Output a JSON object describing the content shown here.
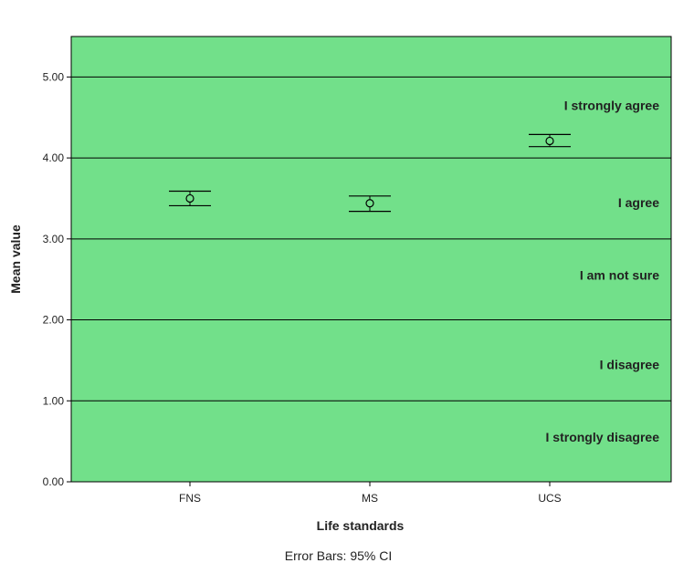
{
  "chart_data": {
    "type": "errorbar",
    "categories": [
      "FNS",
      "MS",
      "UCS"
    ],
    "means": [
      3.5,
      3.44,
      4.21
    ],
    "ci_lower": [
      3.41,
      3.34,
      4.14
    ],
    "ci_upper": [
      3.59,
      3.53,
      4.29
    ],
    "xlabel": "Life standards",
    "ylabel": "Mean value",
    "ylim": [
      0,
      5.5
    ],
    "yticks": [
      "0.00",
      "1.00",
      "2.00",
      "3.00",
      "4.00",
      "5.00"
    ],
    "gridlines": [
      1,
      2,
      3,
      4,
      5
    ],
    "zones": [
      {
        "label": "I strongly disagree",
        "y": 0.55
      },
      {
        "label": "I disagree",
        "y": 1.45
      },
      {
        "label": "I am not sure",
        "y": 2.55
      },
      {
        "label": "I agree",
        "y": 3.45
      },
      {
        "label": "I strongly agree",
        "y": 4.65
      }
    ],
    "footnote": "Error Bars: 95% CI",
    "colors": {
      "plot_background": "#72e08a",
      "line": "#000000"
    }
  }
}
